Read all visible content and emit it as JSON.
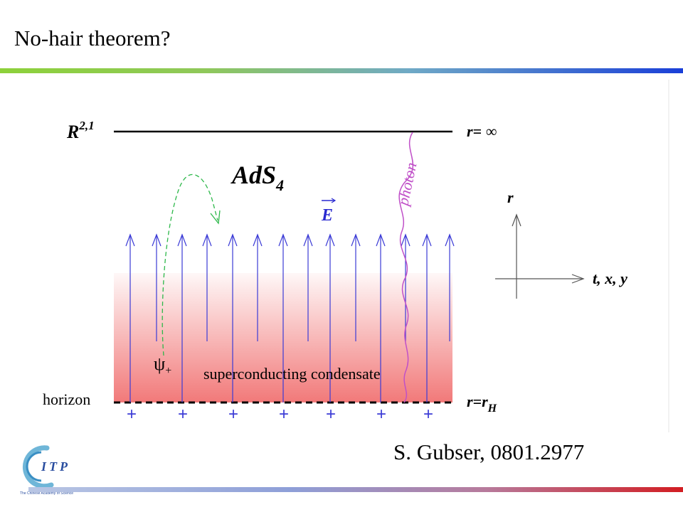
{
  "title": "No-hair theorem?",
  "citation": "S. Gubser, 0801.2977",
  "diagram": {
    "boundary_label_base": "R",
    "boundary_label_sup": "2,1",
    "boundary_r_label": "r= ∞",
    "bulk_label_base": "AdS",
    "bulk_label_sub": "4",
    "field_label": "E",
    "photon_label": "photon",
    "axis_r_label": "r",
    "axis_txy_label": "t, x, y",
    "psi_label": "ψ",
    "psi_sub": "+",
    "condensate_label": "superconducting condensate",
    "horizon_label": "horizon",
    "horizon_r_label_base": "r=r",
    "horizon_r_label_sub": "H",
    "charge_symbol": "+",
    "colors": {
      "field_arrow": "#3b3bd6",
      "photon": "#c050c8",
      "psi_path": "#2db84a",
      "condensate": "#f06a6a",
      "field_label": "#2a2ad0"
    }
  },
  "logo": {
    "text": "ITP",
    "tagline": "The Chinese Academy of Science"
  }
}
